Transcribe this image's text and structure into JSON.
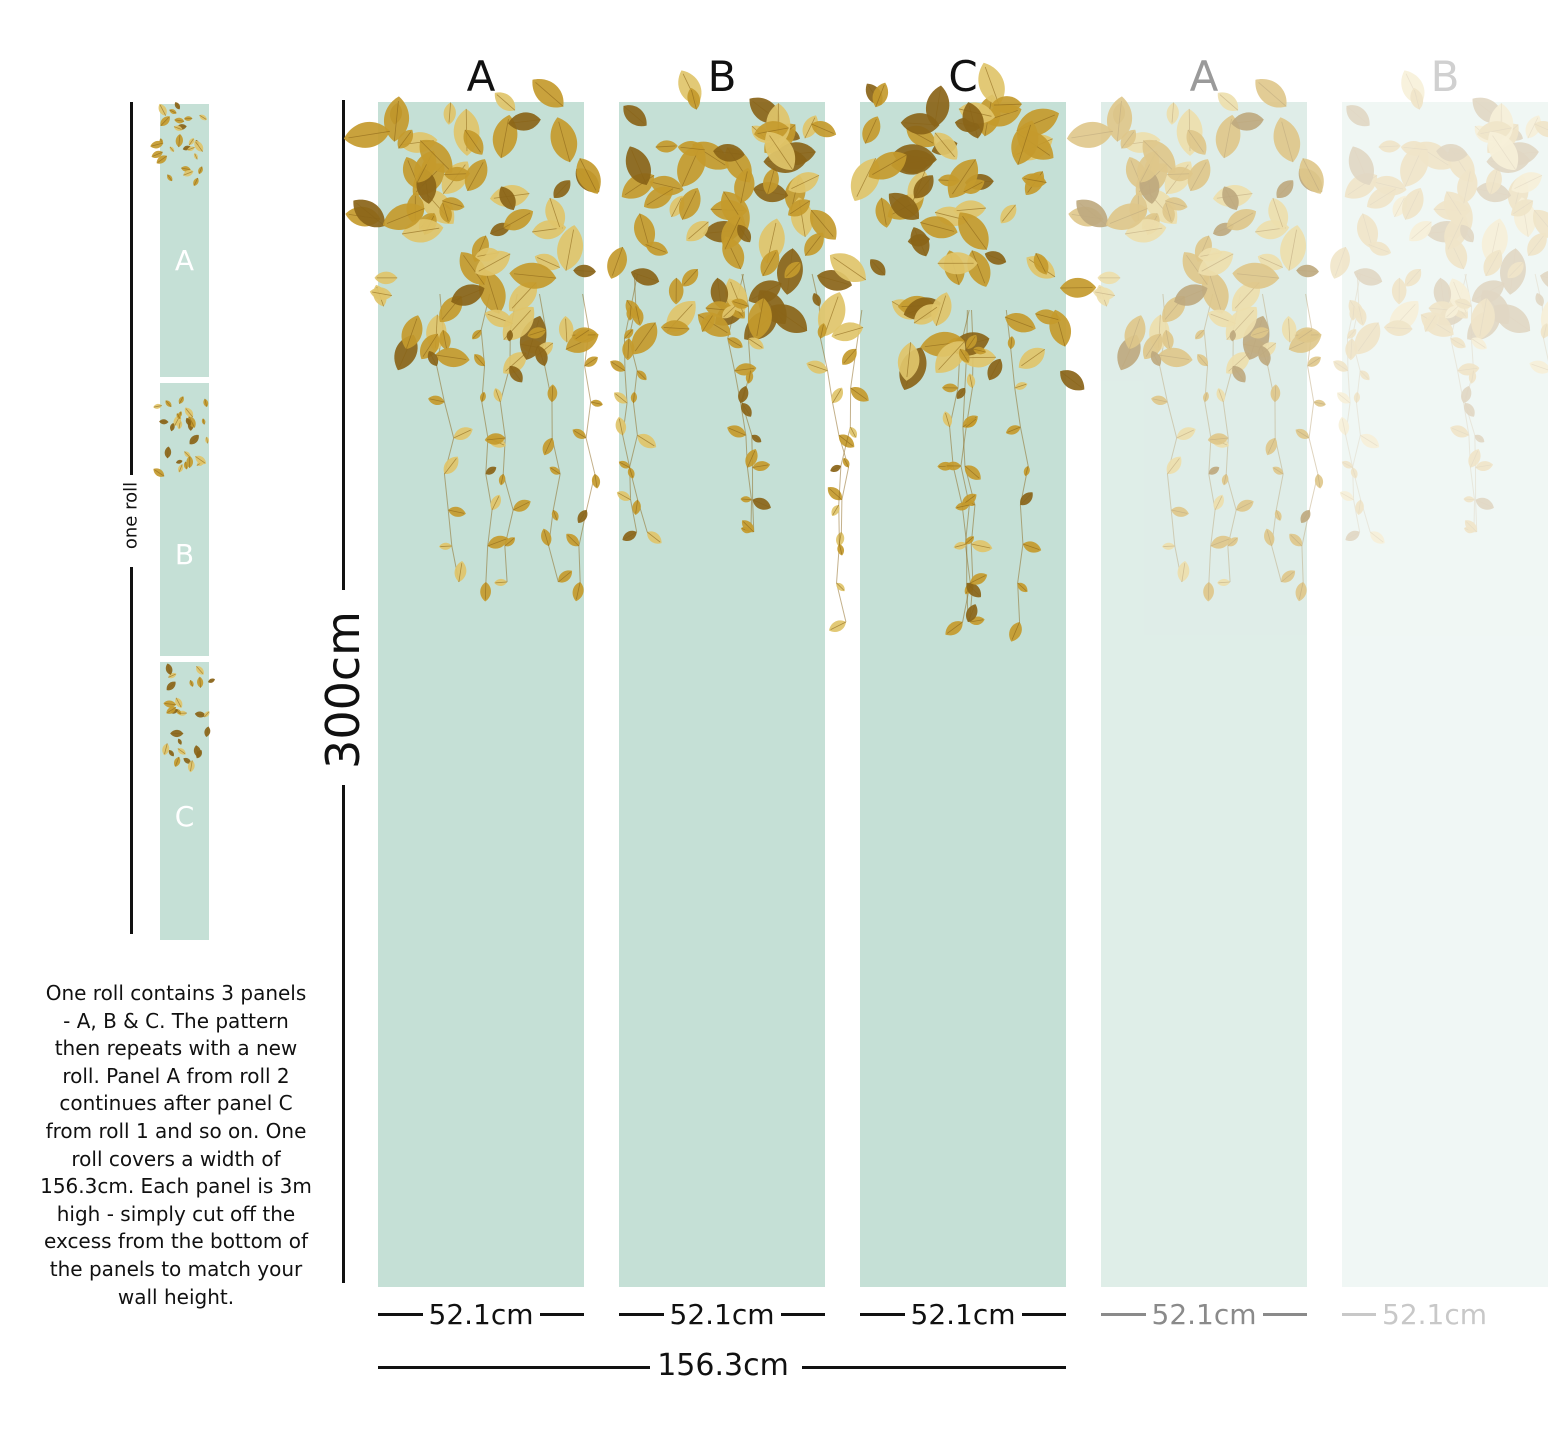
{
  "roll_label": "one roll",
  "height_label": "300cm",
  "total_width_label": "156.3cm",
  "panels": [
    {
      "letter": "A",
      "width_label": "52.1cm",
      "opacity": 1,
      "text_color": "#111111"
    },
    {
      "letter": "B",
      "width_label": "52.1cm",
      "opacity": 1,
      "text_color": "#111111"
    },
    {
      "letter": "C",
      "width_label": "52.1cm",
      "opacity": 1,
      "text_color": "#111111"
    },
    {
      "letter": "A",
      "width_label": "52.1cm",
      "opacity": 0.55,
      "text_color": "#8a8a8a"
    },
    {
      "letter": "B",
      "width_label": "52.1cm",
      "opacity": 0.25,
      "text_color": "#c4c4c4"
    }
  ],
  "mini_panels": [
    {
      "letter": "A"
    },
    {
      "letter": "B"
    },
    {
      "letter": "C"
    }
  ],
  "description": "One roll contains 3 panels - A, B & C. The pattern then repeats with a new roll. Panel A from roll 2 continues after panel C from roll 1 and so on. One roll covers a width of 156.3cm. Each panel is 3m high - simply cut off the excess from the bottom of the panels to match your wall height.",
  "colors": {
    "panel_background": "#c5e0d6",
    "leaf_gold": "#c49a2c",
    "leaf_dark": "#8a6418",
    "leaf_light": "#e0c46a"
  }
}
